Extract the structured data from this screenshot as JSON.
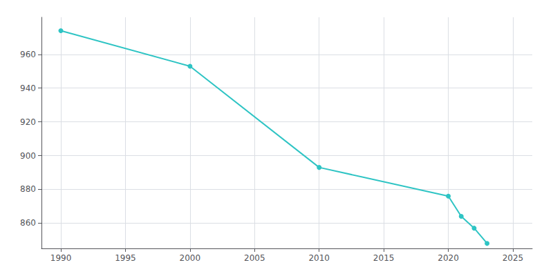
{
  "chart_data": {
    "type": "line",
    "x": [
      1990,
      2000,
      2010,
      2020,
      2021,
      2022,
      2023
    ],
    "values": [
      974,
      953,
      893,
      876,
      864,
      857,
      848
    ],
    "color": "#2ec4c4",
    "marker": "circle",
    "xlim": [
      1988.5,
      2026.5
    ],
    "ylim": [
      845,
      982
    ],
    "xticks": [
      1990,
      1995,
      2000,
      2005,
      2010,
      2015,
      2020,
      2025
    ],
    "yticks": [
      860,
      880,
      900,
      920,
      940,
      960
    ],
    "grid": true
  }
}
